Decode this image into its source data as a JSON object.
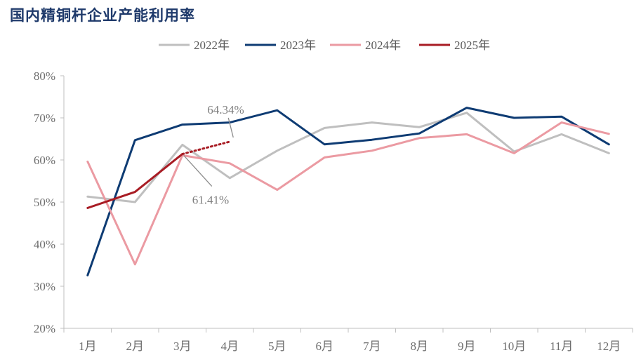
{
  "title": "国内精铜杆企业产能利用率",
  "chart_data": {
    "type": "line",
    "title": "国内精铜杆企业产能利用率",
    "categories": [
      "1月",
      "2月",
      "3月",
      "4月",
      "5月",
      "6月",
      "7月",
      "8月",
      "9月",
      "10月",
      "11月",
      "12月"
    ],
    "y_ticks": [
      "20%",
      "30%",
      "40%",
      "50%",
      "60%",
      "70%",
      "80%"
    ],
    "ylim": [
      20,
      80
    ],
    "grid": false,
    "legend_position": "top-center",
    "series": [
      {
        "name": "2022年",
        "color": "#bfbfbf",
        "values": [
          51.3,
          50.0,
          63.6,
          55.7,
          62.2,
          67.6,
          68.9,
          67.8,
          71.2,
          62.0,
          66.1,
          61.6
        ]
      },
      {
        "name": "2023年",
        "color": "#0e3b73",
        "values": [
          32.6,
          64.7,
          68.4,
          68.9,
          71.8,
          63.7,
          64.8,
          66.3,
          72.4,
          70.0,
          70.3,
          63.7
        ]
      },
      {
        "name": "2024年",
        "color": "#eb9aa2",
        "values": [
          59.6,
          35.2,
          61.1,
          59.2,
          52.9,
          60.6,
          62.2,
          65.2,
          66.1,
          61.6,
          68.9,
          66.2
        ]
      },
      {
        "name": "2025年",
        "color": "#a81c24",
        "values": [
          48.6,
          52.4,
          61.41,
          null,
          null,
          null,
          null,
          null,
          null,
          null,
          null,
          null
        ],
        "dotted_extension": {
          "month_index": 3,
          "value": 64.34
        }
      }
    ],
    "annotations": [
      {
        "text": "64.34%",
        "month_index": 3,
        "value": 64.34
      },
      {
        "text": "61.41%",
        "month_index": 2,
        "value": 61.41
      }
    ]
  }
}
